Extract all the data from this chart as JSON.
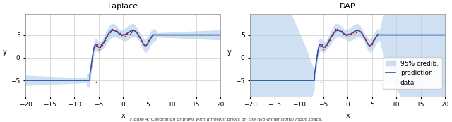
{
  "title_left": "Laplace",
  "title_right": "DAP",
  "xlabel": "x",
  "ylabel": "y",
  "xlim": [
    -20,
    20
  ],
  "ylim": [
    -8.5,
    9.5
  ],
  "xticks": [
    -20,
    -15,
    -10,
    -5,
    0,
    5,
    10,
    15,
    20
  ],
  "yticks": [
    -5,
    0,
    5
  ],
  "fill_color": "#a8c8e8",
  "fill_alpha": 0.55,
  "line_color": "#2255aa",
  "line_width": 1.2,
  "data_color": "#cc1111",
  "data_size": 5,
  "legend_labels": [
    "95% credib.",
    "prediction",
    "data"
  ],
  "figsize": [
    6.4,
    1.73
  ],
  "dpi": 100,
  "caption": "Figure 4: Calibration of BNNs with different priors on the two-dimensional input space."
}
